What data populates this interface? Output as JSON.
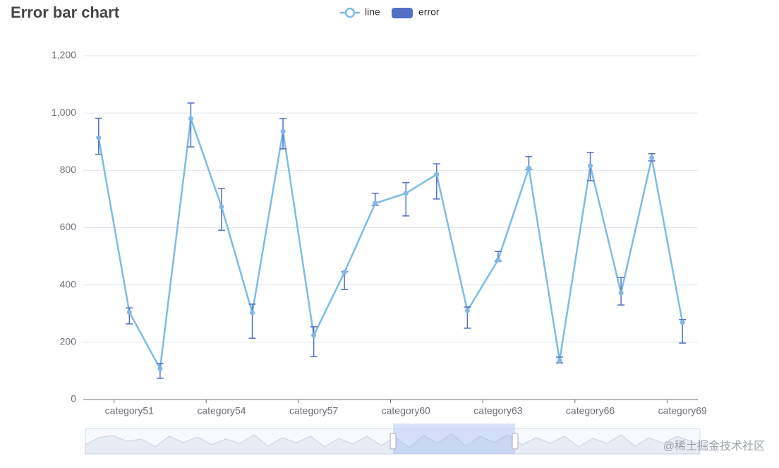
{
  "chart_data": {
    "type": "line-errorbar",
    "title": "Error bar chart",
    "categories": [
      null,
      "category51",
      null,
      null,
      "category54",
      null,
      null,
      "category57",
      null,
      null,
      "category60",
      null,
      null,
      "category63",
      null,
      null,
      "category66",
      null,
      null,
      "category69"
    ],
    "series": [
      {
        "name": "line",
        "color": "#7bbde6",
        "values": [
          914,
          305,
          108,
          981,
          673,
          303,
          936,
          224,
          444,
          685,
          720,
          786,
          310,
          488,
          808,
          136,
          816,
          372,
          843,
          269
        ]
      },
      {
        "name": "error",
        "color": "#5470c6",
        "low": [
          856,
          264,
          74,
          882,
          591,
          214,
          875,
          150,
          384,
          678,
          641,
          700,
          249,
          483,
          803,
          128,
          764,
          330,
          833,
          197
        ],
        "high": [
          982,
          320,
          126,
          1035,
          737,
          333,
          981,
          254,
          446,
          720,
          757,
          823,
          323,
          517,
          848,
          148,
          862,
          426,
          858,
          279
        ]
      }
    ],
    "ylim": [
      0,
      1200
    ],
    "yticks": [
      0,
      200,
      400,
      600,
      800,
      {
        "value": 1000,
        "label": "1,000"
      },
      {
        "value": 1200,
        "label": "1,200"
      }
    ],
    "grid": true,
    "watermark": "@稀土掘金技术社区"
  }
}
